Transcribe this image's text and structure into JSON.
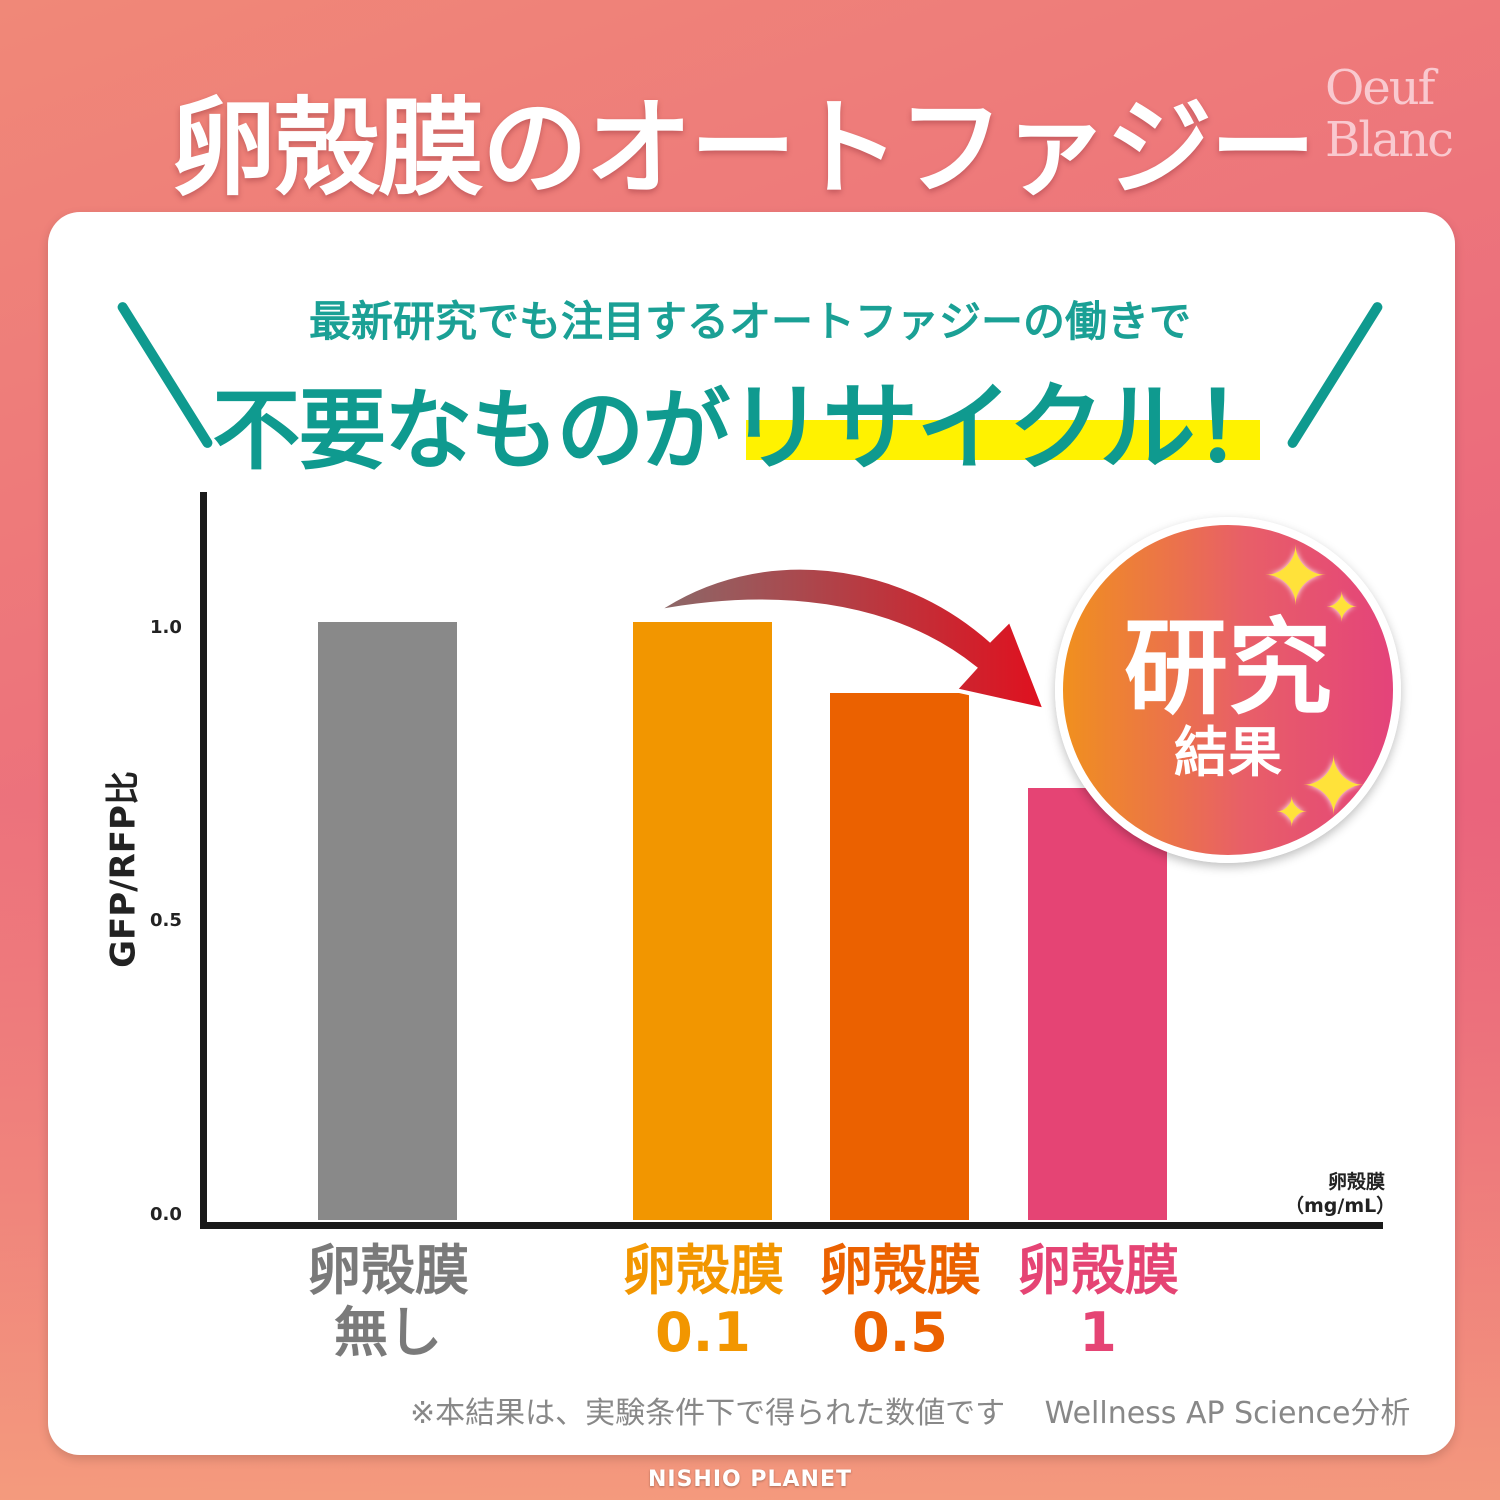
{
  "title": "卵殻膜のオートファジー",
  "logo": "Oeuf Blanc",
  "subtitle": "最新研究でも注目するオートファジーの働きで",
  "headline": {
    "part1": "不要なものが",
    "part2": "リサイクル！"
  },
  "badge": {
    "main": "研究",
    "sub": "結果"
  },
  "footnote": "※本結果は、実験条件下で得られた数値です　 Wellness AP Science分析",
  "footer": "NISHIO PLANET",
  "colors": {
    "teal": "#0f9a8f",
    "highlight": "#fff200",
    "gray": "#898989",
    "orange": "#f29600",
    "dark_orange": "#eb6100",
    "pink": "#e54474"
  },
  "chart_data": {
    "type": "bar",
    "ylabel": "GFP/RFP比",
    "xlabel": "卵殻膜 (mg/mL)",
    "xlabel_line1": "卵殻膜",
    "xlabel_line2": "（mg/mL）",
    "yticks": [
      "0.0",
      "0.5",
      "1.0"
    ],
    "ylim": [
      0,
      1.2
    ],
    "grid": false,
    "categories": [
      {
        "line1": "卵殻膜",
        "line2": "無し",
        "color": "#898989"
      },
      {
        "line1": "卵殻膜",
        "line2": "0.1",
        "color": "#f29600"
      },
      {
        "line1": "卵殻膜",
        "line2": "0.5",
        "color": "#eb6100"
      },
      {
        "line1": "卵殻膜",
        "line2": "1",
        "color": "#e54474"
      }
    ],
    "values": [
      1.01,
      1.01,
      0.89,
      0.73
    ]
  }
}
